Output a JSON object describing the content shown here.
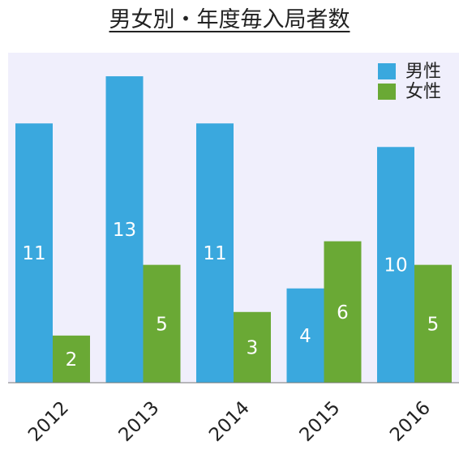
{
  "chart_data": {
    "type": "bar",
    "title": "男女別・年度毎入局者数",
    "categories": [
      "2012",
      "2013",
      "2014",
      "2015",
      "2016"
    ],
    "series": [
      {
        "name": "男性",
        "values": [
          11,
          13,
          11,
          4,
          10
        ],
        "color": "#3aa8de"
      },
      {
        "name": "女性",
        "values": [
          2,
          5,
          3,
          6,
          5
        ],
        "color": "#6aa935"
      }
    ],
    "ylim": [
      0,
      14
    ],
    "grid": false,
    "legend": "top-right",
    "data_labels": true,
    "plot_background": "#f0effc"
  }
}
